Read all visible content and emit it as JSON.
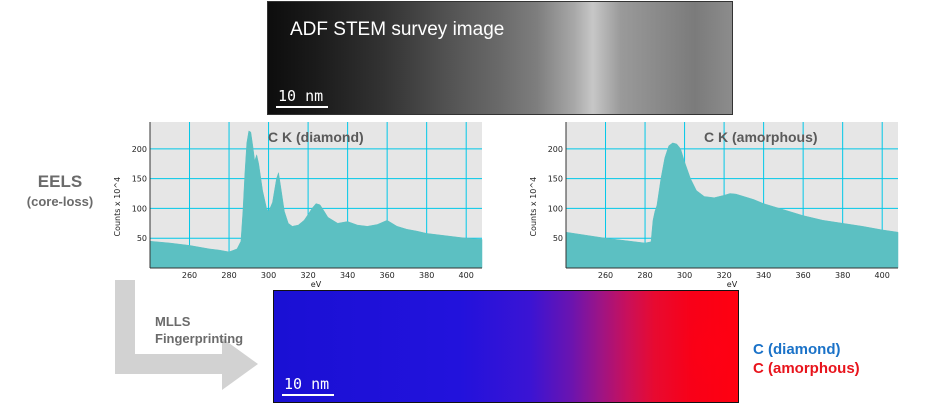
{
  "stem_image": {
    "title": "ADF STEM survey image",
    "scale_bar": "10 nm"
  },
  "eels": {
    "title": "EELS",
    "subtitle": "(core-loss)"
  },
  "mlls": {
    "line1": "MLLS",
    "line2": "Fingerprinting"
  },
  "map": {
    "scale_bar": "10 nm"
  },
  "legend": {
    "diamond": "C (diamond)",
    "amorphous": "C (amorphous)"
  },
  "colors": {
    "spectrum_fill": "#5cc0c2",
    "grid": "#00c8e8",
    "plot_bg": "#e6e6e6",
    "diamond": "#1a72c8",
    "amorphous": "#e8141c"
  },
  "chart_data": [
    {
      "type": "area",
      "title": "C K (diamond)",
      "xlabel": "eV",
      "ylabel": "Counts x 10^4",
      "xlim": [
        240,
        408
      ],
      "ylim": [
        0,
        245
      ],
      "xticks": [
        "260",
        "280",
        "300",
        "320",
        "340",
        "360",
        "380",
        "400"
      ],
      "yticks": [
        "50",
        "100",
        "150",
        "200"
      ],
      "x": [
        240,
        250,
        260,
        270,
        275,
        280,
        284,
        286,
        287,
        288,
        289,
        290,
        291,
        292,
        293,
        294,
        295,
        297,
        299,
        300,
        302,
        304,
        305,
        306,
        308,
        310,
        312,
        315,
        318,
        320,
        322,
        324,
        326,
        328,
        330,
        335,
        340,
        345,
        350,
        355,
        360,
        365,
        370,
        375,
        380,
        390,
        400,
        408
      ],
      "y": [
        45,
        42,
        38,
        32,
        30,
        27,
        32,
        45,
        95,
        160,
        210,
        230,
        228,
        205,
        180,
        190,
        175,
        130,
        100,
        95,
        110,
        150,
        160,
        140,
        95,
        75,
        70,
        72,
        80,
        90,
        100,
        108,
        106,
        96,
        85,
        75,
        78,
        72,
        70,
        73,
        80,
        70,
        65,
        62,
        58,
        54,
        50,
        48
      ]
    },
    {
      "type": "area",
      "title": "C K (amorphous)",
      "xlabel": "eV",
      "ylabel": "Counts x 10^4",
      "xlim": [
        240,
        408
      ],
      "ylim": [
        0,
        245
      ],
      "xticks": [
        "260",
        "280",
        "300",
        "320",
        "340",
        "360",
        "380",
        "400"
      ],
      "yticks": [
        "50",
        "100",
        "150",
        "200"
      ],
      "x": [
        240,
        250,
        260,
        270,
        280,
        283,
        284,
        285,
        286,
        288,
        290,
        292,
        294,
        296,
        298,
        300,
        303,
        306,
        310,
        315,
        320,
        323,
        326,
        330,
        335,
        340,
        350,
        360,
        370,
        380,
        390,
        400,
        408
      ],
      "y": [
        60,
        55,
        50,
        46,
        42,
        44,
        80,
        95,
        105,
        150,
        185,
        205,
        210,
        208,
        200,
        178,
        150,
        130,
        120,
        118,
        122,
        125,
        124,
        120,
        115,
        108,
        98,
        88,
        80,
        75,
        70,
        64,
        60
      ]
    }
  ]
}
